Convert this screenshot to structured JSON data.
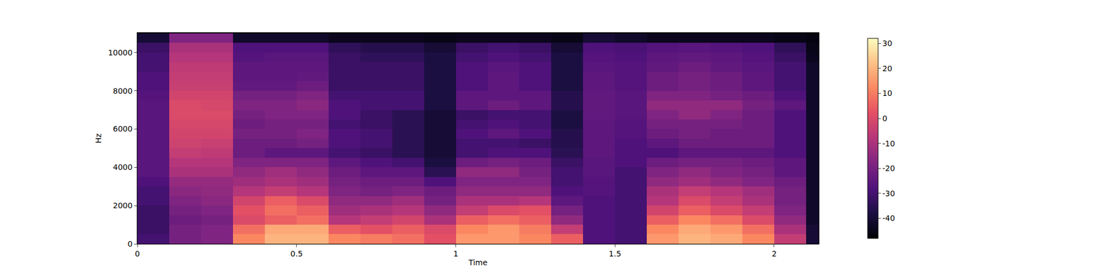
{
  "chart_data": {
    "type": "heatmap",
    "x_label": "Time",
    "y_label": "Hz",
    "color": "magma",
    "x": [
      0.05,
      0.15,
      0.25,
      0.35,
      0.45,
      0.55,
      0.65,
      0.75,
      0.85,
      0.95,
      1.05,
      1.15,
      1.25,
      1.35,
      1.45,
      1.55,
      1.65,
      1.75,
      1.85,
      1.95,
      2.05,
      2.15
    ],
    "y": [
      250,
      750,
      1250,
      1750,
      2250,
      2750,
      3250,
      3750,
      4250,
      4750,
      5250,
      5750,
      6250,
      6750,
      7250,
      7750,
      8250,
      8750,
      9250,
      9750,
      10250,
      10750
    ],
    "z": [
      [
        -30,
        -20,
        -18,
        12,
        20,
        20,
        12,
        10,
        8,
        2,
        15,
        15,
        12,
        5,
        -28,
        -30,
        15,
        20,
        18,
        12,
        -5,
        -40
      ],
      [
        -32,
        -20,
        -18,
        8,
        18,
        18,
        5,
        2,
        5,
        0,
        12,
        15,
        10,
        -5,
        -28,
        -30,
        12,
        18,
        15,
        8,
        -10,
        -40
      ],
      [
        -32,
        -22,
        -20,
        0,
        5,
        8,
        -8,
        -5,
        -2,
        -10,
        5,
        8,
        5,
        -15,
        -28,
        -30,
        5,
        12,
        8,
        0,
        -15,
        -42
      ],
      [
        -32,
        -20,
        -18,
        2,
        8,
        5,
        -12,
        -10,
        -8,
        -15,
        -5,
        0,
        2,
        -20,
        -28,
        -30,
        -2,
        5,
        0,
        -5,
        -18,
        -42
      ],
      [
        -30,
        -18,
        -16,
        -2,
        5,
        0,
        -15,
        -15,
        -12,
        -20,
        -10,
        -10,
        -8,
        -25,
        -28,
        -30,
        -8,
        0,
        -5,
        -10,
        -20,
        -42
      ],
      [
        -30,
        -16,
        -15,
        -8,
        -5,
        -8,
        -18,
        -20,
        -18,
        -22,
        -15,
        -15,
        -15,
        -28,
        -27,
        -30,
        -10,
        -5,
        -8,
        -12,
        -20,
        -42
      ],
      [
        -28,
        -14,
        -14,
        -12,
        -10,
        -12,
        -20,
        -22,
        -22,
        -28,
        -18,
        -18,
        -18,
        -30,
        -27,
        -30,
        -15,
        -12,
        -15,
        -18,
        -22,
        -42
      ],
      [
        -26,
        -10,
        -10,
        -15,
        -12,
        -15,
        -22,
        -25,
        -25,
        -35,
        -15,
        -15,
        -20,
        -30,
        -26,
        -30,
        -18,
        -15,
        -18,
        -20,
        -25,
        -42
      ],
      [
        -26,
        -8,
        -8,
        -18,
        -18,
        -18,
        -25,
        -28,
        -30,
        -38,
        -22,
        -20,
        -22,
        -32,
        -26,
        -28,
        -22,
        -20,
        -20,
        -22,
        -25,
        -42
      ],
      [
        -26,
        -5,
        -6,
        -22,
        -25,
        -25,
        -30,
        -32,
        -35,
        -40,
        -30,
        -28,
        -28,
        -35,
        -25,
        -28,
        -28,
        -25,
        -25,
        -25,
        -28,
        -42
      ],
      [
        -26,
        -3,
        -4,
        -22,
        -22,
        -20,
        -28,
        -30,
        -35,
        -40,
        -30,
        -30,
        -32,
        -36,
        -25,
        -28,
        -25,
        -22,
        -22,
        -22,
        -28,
        -42
      ],
      [
        -26,
        -2,
        -2,
        -20,
        -20,
        -18,
        -28,
        -30,
        -35,
        -40,
        -28,
        -25,
        -28,
        -36,
        -25,
        -27,
        -22,
        -20,
        -22,
        -22,
        -28,
        -42
      ],
      [
        -26,
        -1,
        -1,
        -22,
        -20,
        -20,
        -30,
        -32,
        -35,
        -40,
        -30,
        -28,
        -30,
        -38,
        -25,
        -27,
        -20,
        -20,
        -20,
        -22,
        -28,
        -42
      ],
      [
        -26,
        0,
        0,
        -20,
        -18,
        -18,
        -28,
        -32,
        -35,
        -40,
        -32,
        -30,
        -30,
        -38,
        -24,
        -26,
        -18,
        -15,
        -18,
        -22,
        -28,
        -42
      ],
      [
        -26,
        0,
        -1,
        -18,
        -18,
        -16,
        -28,
        -30,
        -30,
        -38,
        -25,
        -22,
        -25,
        -36,
        -24,
        -26,
        -15,
        -15,
        -15,
        -20,
        -25,
        -42
      ],
      [
        -27,
        -2,
        -2,
        -20,
        -20,
        -18,
        -30,
        -30,
        -30,
        -38,
        -25,
        -25,
        -25,
        -36,
        -24,
        -26,
        -18,
        -18,
        -20,
        -22,
        -28,
        -42
      ],
      [
        -28,
        -4,
        -4,
        -24,
        -24,
        -22,
        -32,
        -32,
        -32,
        -38,
        -28,
        -25,
        -28,
        -38,
        -25,
        -27,
        -22,
        -20,
        -22,
        -25,
        -30,
        -42
      ],
      [
        -28,
        -5,
        -5,
        -25,
        -25,
        -24,
        -32,
        -32,
        -32,
        -38,
        -28,
        -25,
        -28,
        -38,
        -25,
        -27,
        -22,
        -20,
        -22,
        -25,
        -30,
        -42
      ],
      [
        -30,
        -6,
        -6,
        -25,
        -25,
        -25,
        -32,
        -32,
        -32,
        -38,
        -28,
        -26,
        -28,
        -38,
        -26,
        -27,
        -24,
        -22,
        -24,
        -26,
        -30,
        -42
      ],
      [
        -30,
        -8,
        -8,
        -27,
        -26,
        -26,
        -32,
        -34,
        -34,
        -38,
        -30,
        -28,
        -30,
        -38,
        -27,
        -28,
        -25,
        -24,
        -25,
        -27,
        -32,
        -44
      ],
      [
        -32,
        -10,
        -10,
        -28,
        -28,
        -28,
        -34,
        -36,
        -36,
        -40,
        -32,
        -30,
        -32,
        -40,
        -28,
        -29,
        -27,
        -26,
        -27,
        -28,
        -34,
        -45
      ],
      [
        -40,
        -18,
        -18,
        -42,
        -42,
        -42,
        -44,
        -44,
        -44,
        -45,
        -44,
        -44,
        -44,
        -45,
        -40,
        -42,
        -44,
        -44,
        -44,
        -44,
        -45,
        -46
      ]
    ],
    "xlim": [
      0,
      2.14
    ],
    "xticks": [
      0,
      0.5,
      1,
      1.5,
      2
    ],
    "ylim": [
      0,
      11025
    ],
    "yticks": [
      0,
      2000,
      4000,
      6000,
      8000,
      10000
    ],
    "colorbar": {
      "range": [
        -48,
        32
      ],
      "ticks": [
        -40,
        -30,
        -20,
        -10,
        0,
        10,
        20,
        30
      ]
    }
  }
}
